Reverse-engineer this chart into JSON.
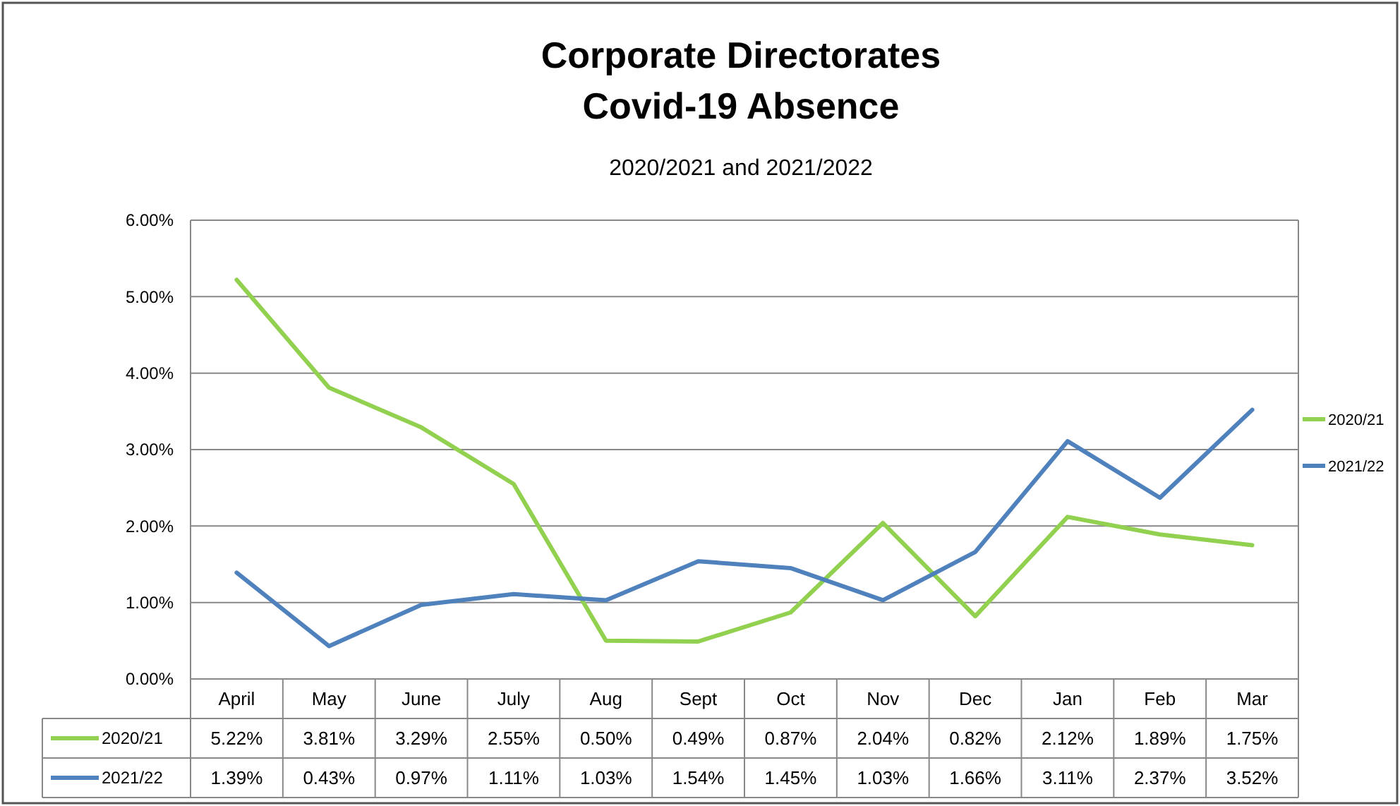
{
  "chart_data": {
    "type": "line",
    "title": "Corporate  Directorates\nCovid-19 Absence",
    "subtitle": "2020/2021 and 2021/2022",
    "categories": [
      "April",
      "May",
      "June",
      "July",
      "Aug",
      "Sept",
      "Oct",
      "Nov",
      "Dec",
      "Jan",
      "Feb",
      "Mar"
    ],
    "ylim": [
      0,
      6
    ],
    "yticks": [
      {
        "value": 0,
        "label": "0.00%"
      },
      {
        "value": 1,
        "label": "1.00%"
      },
      {
        "value": 2,
        "label": "2.00%"
      },
      {
        "value": 3,
        "label": "3.00%"
      },
      {
        "value": 4,
        "label": "4.00%"
      },
      {
        "value": 5,
        "label": "5.00%"
      },
      {
        "value": 6,
        "label": "6.00%"
      }
    ],
    "grid": "y",
    "legend": "right",
    "marker": "none",
    "line_style": "solid",
    "series": [
      {
        "name": "2020/21",
        "color": "#92d050",
        "values": [
          5.22,
          3.81,
          3.29,
          2.55,
          0.5,
          0.49,
          0.87,
          2.04,
          0.82,
          2.12,
          1.89,
          1.75
        ],
        "value_labels": [
          "5.22%",
          "3.81%",
          "3.29%",
          "2.55%",
          "0.50%",
          "0.49%",
          "0.87%",
          "2.04%",
          "0.82%",
          "2.12%",
          "1.89%",
          "1.75%"
        ]
      },
      {
        "name": "2021/22",
        "color": "#4f81bd",
        "values": [
          1.39,
          0.43,
          0.97,
          1.11,
          1.03,
          1.54,
          1.45,
          1.03,
          1.66,
          3.11,
          2.37,
          3.52
        ],
        "value_labels": [
          "1.39%",
          "0.43%",
          "0.97%",
          "1.11%",
          "1.03%",
          "1.54%",
          "1.45%",
          "1.03%",
          "1.66%",
          "3.11%",
          "2.37%",
          "3.52%"
        ]
      }
    ]
  }
}
